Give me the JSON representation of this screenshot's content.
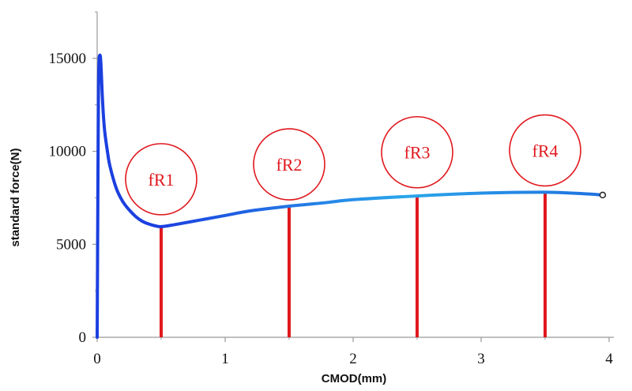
{
  "chart_data": {
    "type": "line",
    "title": "",
    "xlabel": "CMOD(mm)",
    "ylabel": "standard force(N)",
    "xlim": [
      0,
      4
    ],
    "ylim": [
      0,
      17500
    ],
    "x_ticks": [
      0,
      1,
      2,
      3,
      4
    ],
    "x_tick_labels": [
      "0",
      "1",
      "2",
      "3",
      "4"
    ],
    "y_ticks": [
      0,
      5000,
      10000,
      15000
    ],
    "y_tick_labels": [
      "0",
      "5000",
      "10000",
      "15000"
    ],
    "grid": false,
    "legend": "none",
    "series": [
      {
        "x": [
          0.0,
          0.005,
          0.01,
          0.015,
          0.02,
          0.025,
          0.03,
          0.035,
          0.04,
          0.05,
          0.06,
          0.08,
          0.1,
          0.15,
          0.2,
          0.25,
          0.3,
          0.35,
          0.4,
          0.45,
          0.5,
          0.6,
          0.8,
          1.0,
          1.2,
          1.5,
          1.8,
          2.0,
          2.5,
          3.0,
          3.5,
          3.8,
          3.95
        ],
        "y": [
          0,
          7000,
          13200,
          14900,
          15150,
          15100,
          14600,
          13800,
          13000,
          11800,
          11000,
          10000,
          9200,
          8000,
          7300,
          6850,
          6500,
          6250,
          6100,
          6000,
          5950,
          6050,
          6300,
          6550,
          6800,
          7050,
          7250,
          7400,
          7600,
          7750,
          7800,
          7720,
          7650
        ]
      }
    ],
    "line_color_start": "#1b3fe0",
    "line_color_end": "#2aa6ea",
    "end_marker": "open-circle",
    "markers": [
      {
        "label": "fR1",
        "x": 0.5,
        "y": 5950,
        "circle_y": 8500
      },
      {
        "label": "fR2",
        "x": 1.5,
        "y": 7050,
        "circle_y": 9300
      },
      {
        "label": "fR3",
        "x": 2.5,
        "y": 7600,
        "circle_y": 9950
      },
      {
        "label": "fR4",
        "x": 3.5,
        "y": 7800,
        "circle_y": 10050
      }
    ],
    "marker_color": "#e0191e",
    "axis_color": "#999999"
  }
}
